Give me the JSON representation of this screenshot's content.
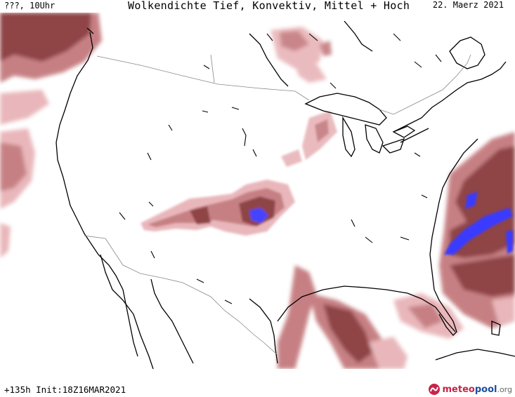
{
  "header": {
    "left_label": "???, 10Uhr",
    "title": "Wolkendichte  Tief, Konvektiv, Mittel + Hoch",
    "date": "22. Maerz 2021"
  },
  "footer": {
    "run_info": "+135h  Init:18Z16MAR2021",
    "logo_part1": "meteo",
    "logo_part2": "pool",
    "logo_part3": ".org"
  },
  "colors": {
    "cloud_light": "#e8b4b8",
    "cloud_mid": "#c47a7e",
    "cloud_dark": "#8a3a3e",
    "cloud_max": "#3b3bff",
    "coast": "#000000",
    "border": "#888888"
  }
}
